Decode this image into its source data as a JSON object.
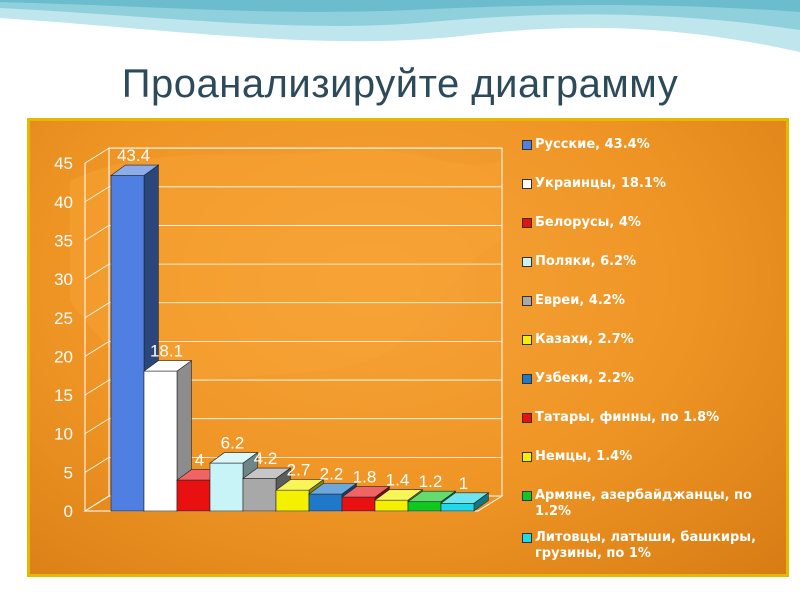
{
  "title": "Проанализируйте диаграмму",
  "chart_data": {
    "type": "bar",
    "title": "",
    "xlabel": "",
    "ylabel": "",
    "ylim": [
      0,
      45
    ],
    "yticks": [
      0,
      5,
      10,
      15,
      20,
      25,
      30,
      35,
      40,
      45
    ],
    "grid": true,
    "legend_position": "right",
    "categories": [
      "Русские, 43.4%",
      "Украинцы, 18.1%",
      "Белорусы, 4%",
      "Поляки, 6.2%",
      "Евреи, 4.2%",
      "Казахи, 2.7%",
      "Узбеки, 2.2%",
      "Татары, финны, по 1.8%",
      "Немцы, 1.4%",
      "Армяне, азербайджанцы, по 1.2%",
      "Литовцы, латыши, башкиры, грузины, по 1%"
    ],
    "values": [
      43.4,
      18.1,
      4,
      6.2,
      4.2,
      2.7,
      2.2,
      1.8,
      1.4,
      1.2,
      1
    ],
    "value_labels": [
      "43.4",
      "18.1",
      "4",
      "6.2",
      "4.2",
      "2.7",
      "2.2",
      "1.8",
      "1.4",
      "1.2",
      "1"
    ],
    "colors": [
      "#4f7fe0",
      "#ffffff",
      "#e81010",
      "#c8f4f8",
      "#a8a8a8",
      "#f4f000",
      "#1f78c8",
      "#e81010",
      "#f4f000",
      "#10c820",
      "#20d8e8"
    ]
  }
}
